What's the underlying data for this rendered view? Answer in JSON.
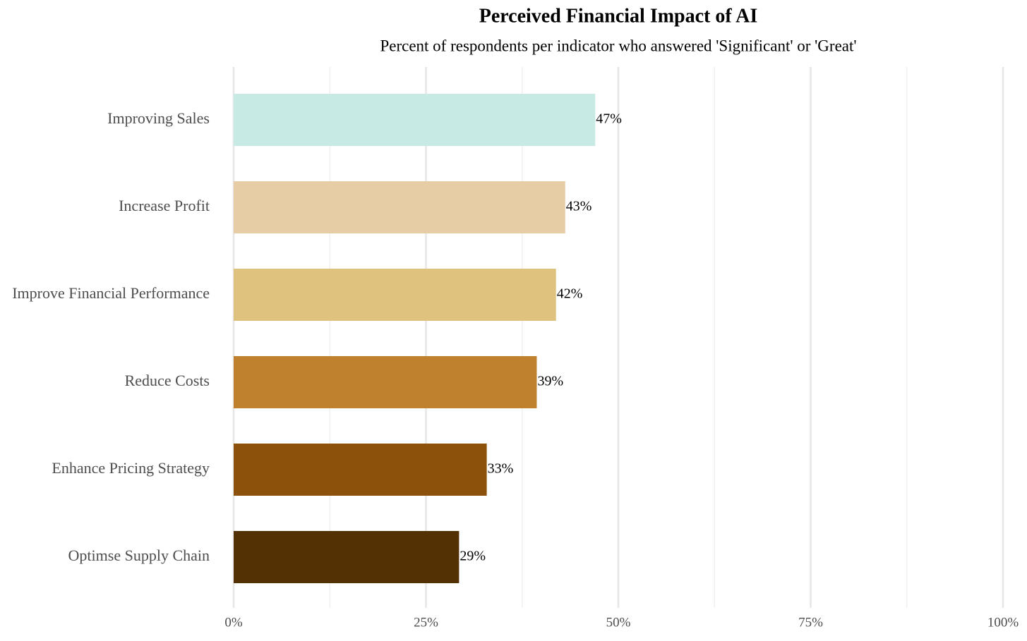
{
  "chart_data": {
    "type": "barh",
    "title": "Perceived Financial Impact of AI",
    "subtitle": "Percent of respondents per indicator who answered 'Significant' or 'Great'",
    "categories": [
      "Improving Sales",
      "Increase Profit",
      "Improve Financial Performance",
      "Reduce Costs",
      "Enhance Pricing Strategy",
      "Optimse Supply Chain"
    ],
    "values": [
      47,
      43.1,
      41.9,
      39.4,
      32.9,
      29.3
    ],
    "value_labels": [
      "47%",
      "43%",
      "42%",
      "39%",
      "33%",
      "29%"
    ],
    "colors": [
      "#c7eae5",
      "#e6cda5",
      "#dfc27d",
      "#bf812d",
      "#8c510a",
      "#543005"
    ],
    "xlim": [
      0,
      100
    ],
    "xticks": [
      {
        "value": 0,
        "label": "0%"
      },
      {
        "value": 25,
        "label": "25%"
      },
      {
        "value": 50,
        "label": "50%"
      },
      {
        "value": 75,
        "label": "75%"
      },
      {
        "value": 100,
        "label": "100%"
      }
    ],
    "minor_xticks": [
      12.5,
      37.5,
      62.5,
      87.5
    ],
    "grid": true
  }
}
